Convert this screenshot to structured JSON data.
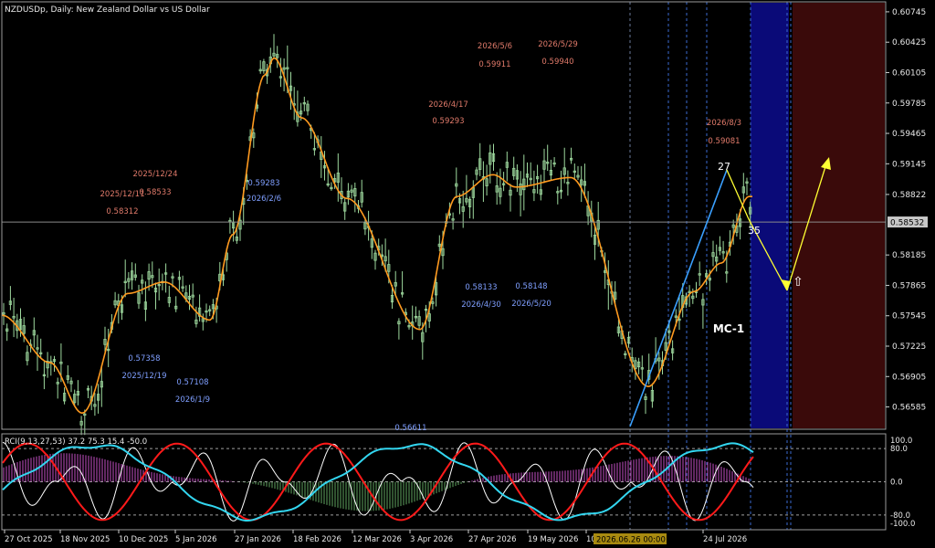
{
  "header": {
    "symbol_title": "NZDUSDp, Daily:  New Zealand Dollar vs US Dollar"
  },
  "indicator": {
    "label": "RCI(9,13,27,53) 37.2 75.3 15.4 -50.0",
    "levels": [
      {
        "value": 100,
        "label": "100.0"
      },
      {
        "value": 80,
        "label": "80.0"
      },
      {
        "value": 0,
        "label": "0.0"
      },
      {
        "value": -80,
        "label": "-80.0"
      },
      {
        "value": -100,
        "label": "-100.0"
      }
    ]
  },
  "price_axis": {
    "ticks": [
      "0.60745",
      "0.60425",
      "0.60105",
      "0.59785",
      "0.59465",
      "0.59145",
      "0.58822",
      "0.58185",
      "0.57865",
      "0.57545",
      "0.57225",
      "0.56905",
      "0.56585"
    ],
    "current_price": "0.58532"
  },
  "time_axis": {
    "ticks": [
      "27 Oct 2025",
      "18 Nov 2025",
      "10 Dec 2025",
      "5 Jan 2026",
      "27 Jan 2026",
      "18 Feb 2026",
      "12 Mar 2026",
      "3 Apr 2026",
      "27 Apr 2026",
      "19 May 2026",
      "10",
      "2026.06.26 00:00",
      "24 Jul 2026"
    ]
  },
  "annotations": {
    "highs": [
      {
        "date": "2025/12/24",
        "price": "0.58533"
      },
      {
        "date": "2025/12/11",
        "price": "0.58312"
      },
      {
        "date": "2026/4/17",
        "price": "0.59293"
      },
      {
        "date": "2026/5/6",
        "price": "0.59911"
      },
      {
        "date": "2026/5/29",
        "price": "0.59940"
      },
      {
        "date": "2026/8/3",
        "price": "0.59081"
      }
    ],
    "lows": [
      {
        "date": "2025/12/19",
        "price": "0.57358"
      },
      {
        "date": "2026/1/9",
        "price": "0.57108"
      },
      {
        "date": "2026/2/6",
        "price": "0.59283"
      },
      {
        "date": "2026/4/30",
        "price": "0.58133"
      },
      {
        "date": "2026/5/20",
        "price": "0.58148"
      },
      {
        "date": "",
        "price": "0.56611"
      }
    ],
    "wave_labels": [
      "27",
      "35"
    ],
    "zone_label": "MC-1",
    "arrow_symbol": "⇧"
  },
  "chart_data": {
    "type": "line",
    "title": "NZDUSDp, Daily:  New Zealand Dollar vs US Dollar",
    "xlabel": "",
    "ylabel": "",
    "ylim": [
      0.5635,
      0.6085
    ],
    "price_series_ma": [
      {
        "date": "2025-10-27",
        "value": 0.5755
      },
      {
        "date": "2025-11-10",
        "value": 0.5705
      },
      {
        "date": "2025-11-25",
        "value": 0.5652
      },
      {
        "date": "2025-12-10",
        "value": 0.5778
      },
      {
        "date": "2025-12-24",
        "value": 0.579
      },
      {
        "date": "2026-01-09",
        "value": 0.575
      },
      {
        "date": "2026-01-20",
        "value": 0.584
      },
      {
        "date": "2026-02-03",
        "value": 0.6008
      },
      {
        "date": "2026-02-12",
        "value": 0.6026
      },
      {
        "date": "2026-02-25",
        "value": 0.5963
      },
      {
        "date": "2026-03-12",
        "value": 0.5878
      },
      {
        "date": "2026-04-02",
        "value": 0.574
      },
      {
        "date": "2026-04-20",
        "value": 0.588
      },
      {
        "date": "2026-05-06",
        "value": 0.5903
      },
      {
        "date": "2026-05-20",
        "value": 0.589
      },
      {
        "date": "2026-06-03",
        "value": 0.59
      },
      {
        "date": "2026-06-26",
        "value": 0.568
      },
      {
        "date": "2026-07-10",
        "value": 0.578
      },
      {
        "date": "2026-07-24",
        "value": 0.581
      },
      {
        "date": "2026-08-03",
        "value": 0.588
      }
    ],
    "rci_series": [
      {
        "name": "RCI 9",
        "value": 37.2
      },
      {
        "name": "RCI 13",
        "value": 75.3
      },
      {
        "name": "RCI 27",
        "value": 15.4
      },
      {
        "name": "RCI 53",
        "value": -50.0
      }
    ]
  },
  "colors": {
    "background": "#000000",
    "candle": "#9ed99e",
    "ma": "#ff9a1f",
    "high_label": "#e07a6a",
    "low_label": "#7f9fff",
    "rci_cyan": "#33d6f0",
    "rci_red": "#ff1a1a",
    "rci_white": "#ffffff",
    "hist_green": "#5fa05f",
    "hist_magenta": "#c050c0",
    "zone_blue": "#0a0a78",
    "zone_red": "#3a0a0a",
    "forecast": "#ffff33",
    "trend": "#3aa0ff"
  }
}
